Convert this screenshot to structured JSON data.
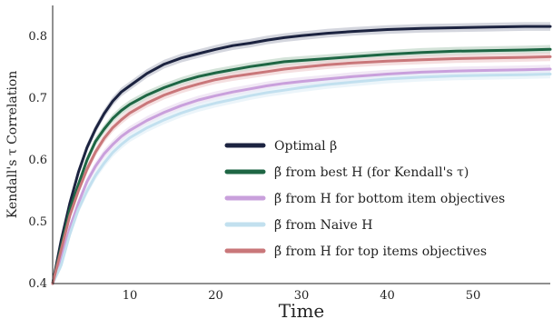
{
  "chart_data": {
    "type": "line",
    "title": "",
    "xlabel": "Time",
    "ylabel": "Kendall's τ Correlation",
    "xlim": [
      1,
      59
    ],
    "ylim": [
      0.4,
      0.85
    ],
    "xticks": [
      10,
      20,
      30,
      40,
      50
    ],
    "yticks": [
      0.4,
      0.5,
      0.6,
      0.7,
      0.8
    ],
    "grid": false,
    "legend_position": "lower-right",
    "series": [
      {
        "name": "Optimal β",
        "color": "#1c2340",
        "band_color": "#c5c8d3",
        "x": [
          1,
          2,
          3,
          4,
          5,
          6,
          7,
          8,
          9,
          10,
          12,
          14,
          16,
          18,
          20,
          22,
          24,
          26,
          28,
          30,
          33,
          36,
          40,
          44,
          48,
          52,
          56,
          59
        ],
        "y": [
          0.4,
          0.47,
          0.53,
          0.58,
          0.62,
          0.65,
          0.675,
          0.695,
          0.71,
          0.72,
          0.74,
          0.755,
          0.765,
          0.772,
          0.779,
          0.785,
          0.789,
          0.794,
          0.798,
          0.801,
          0.805,
          0.808,
          0.811,
          0.813,
          0.814,
          0.815,
          0.816,
          0.816
        ]
      },
      {
        "name": "β̃ from best H (for Kendall's τ)",
        "color": "#1e6644",
        "band_color": "#c5d9cc",
        "x": [
          1,
          2,
          3,
          4,
          5,
          6,
          7,
          8,
          9,
          10,
          12,
          14,
          16,
          18,
          20,
          22,
          24,
          26,
          28,
          30,
          33,
          36,
          40,
          44,
          48,
          52,
          56,
          59
        ],
        "y": [
          0.4,
          0.46,
          0.52,
          0.56,
          0.6,
          0.63,
          0.65,
          0.667,
          0.68,
          0.69,
          0.705,
          0.717,
          0.727,
          0.735,
          0.741,
          0.746,
          0.751,
          0.755,
          0.759,
          0.761,
          0.764,
          0.767,
          0.771,
          0.774,
          0.776,
          0.777,
          0.778,
          0.779
        ]
      },
      {
        "name": "β̃ from H for bottom item objectives",
        "color": "#c9a0dc",
        "band_color": "#ece0f2",
        "x": [
          1,
          2,
          3,
          4,
          5,
          6,
          7,
          8,
          9,
          10,
          12,
          14,
          16,
          18,
          20,
          22,
          24,
          26,
          28,
          30,
          33,
          36,
          40,
          44,
          48,
          52,
          56,
          59
        ],
        "y": [
          0.4,
          0.44,
          0.49,
          0.53,
          0.565,
          0.59,
          0.61,
          0.625,
          0.638,
          0.648,
          0.664,
          0.677,
          0.688,
          0.697,
          0.704,
          0.71,
          0.715,
          0.72,
          0.724,
          0.727,
          0.731,
          0.735,
          0.739,
          0.742,
          0.744,
          0.745,
          0.746,
          0.747
        ]
      },
      {
        "name": "β̃ from Naive H",
        "color": "#c2e0ef",
        "band_color": "#e6f2f8",
        "x": [
          1,
          2,
          3,
          4,
          5,
          6,
          7,
          8,
          9,
          10,
          12,
          14,
          16,
          18,
          20,
          22,
          24,
          26,
          28,
          30,
          33,
          36,
          40,
          44,
          48,
          52,
          56,
          59
        ],
        "y": [
          0.39,
          0.43,
          0.48,
          0.52,
          0.55,
          0.575,
          0.595,
          0.612,
          0.625,
          0.636,
          0.652,
          0.665,
          0.676,
          0.685,
          0.692,
          0.698,
          0.704,
          0.709,
          0.713,
          0.717,
          0.722,
          0.726,
          0.731,
          0.734,
          0.736,
          0.737,
          0.738,
          0.739
        ]
      },
      {
        "name": "β̃ from H for top items objectives",
        "color": "#c9777a",
        "band_color": "#f2d6d7",
        "x": [
          1,
          2,
          3,
          4,
          5,
          6,
          7,
          8,
          9,
          10,
          12,
          14,
          16,
          18,
          20,
          22,
          24,
          26,
          28,
          30,
          33,
          36,
          40,
          44,
          48,
          52,
          56,
          59
        ],
        "y": [
          0.4,
          0.455,
          0.51,
          0.55,
          0.585,
          0.613,
          0.635,
          0.652,
          0.665,
          0.676,
          0.692,
          0.705,
          0.715,
          0.723,
          0.73,
          0.735,
          0.739,
          0.743,
          0.747,
          0.75,
          0.754,
          0.757,
          0.76,
          0.762,
          0.764,
          0.765,
          0.766,
          0.767
        ]
      }
    ]
  }
}
